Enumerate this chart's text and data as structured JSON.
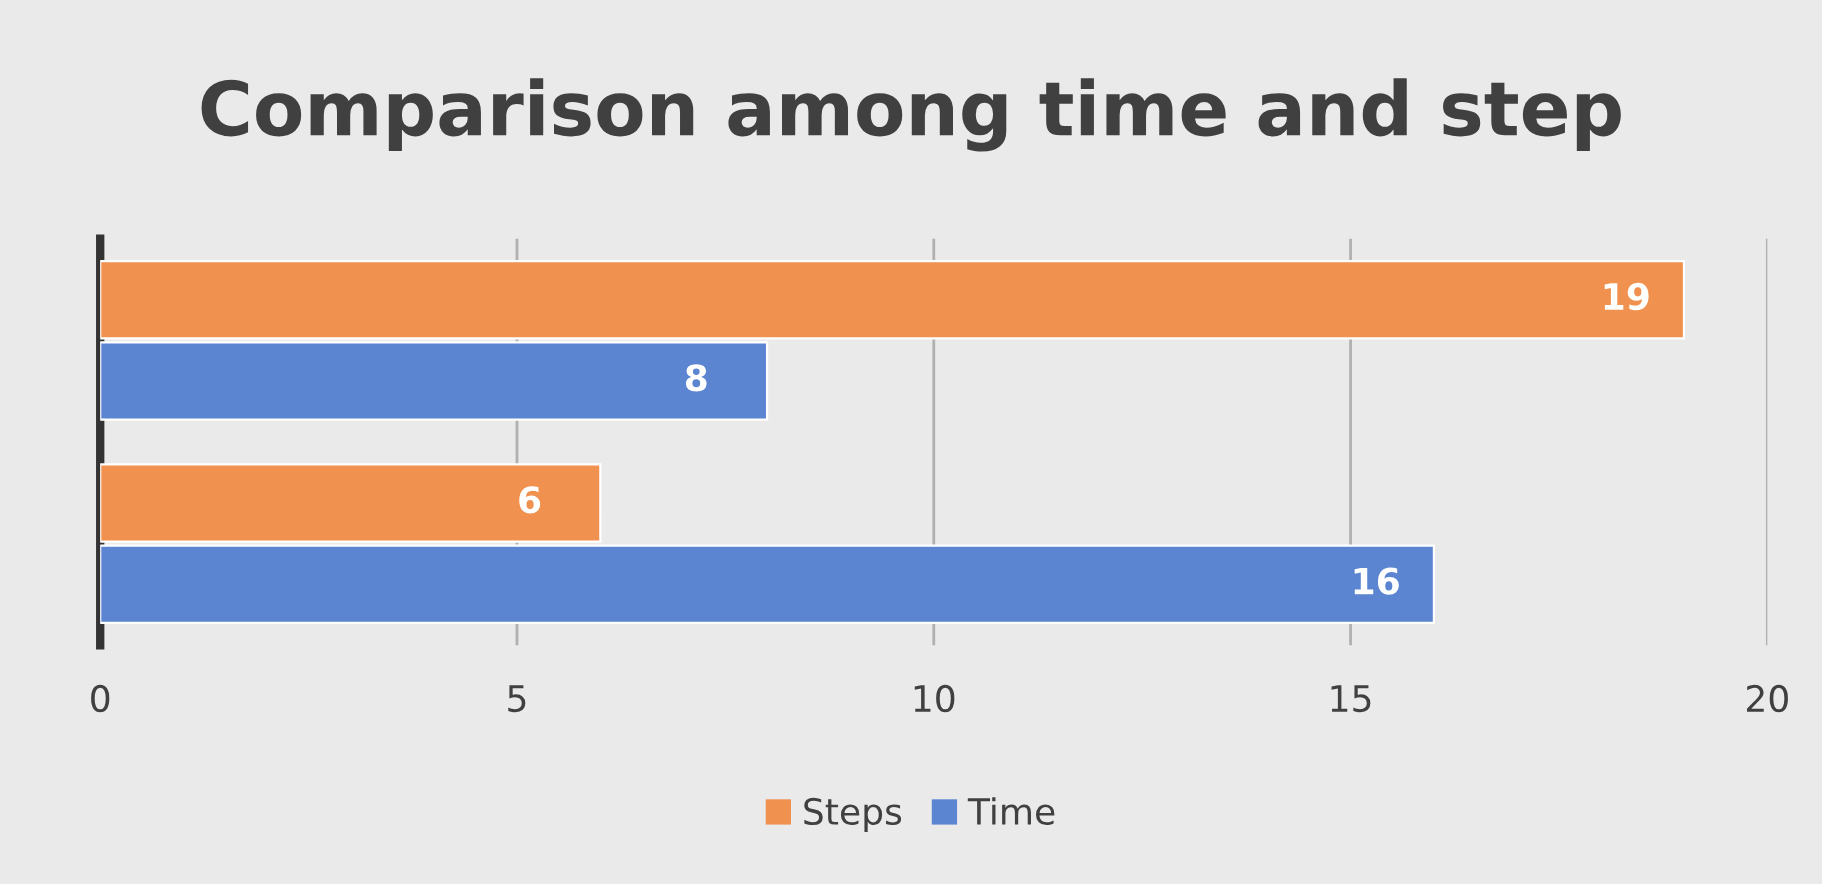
{
  "chart_data": {
    "type": "bar",
    "orientation": "horizontal",
    "title": "Comparison among time and step",
    "categories": [
      null,
      null
    ],
    "series": [
      {
        "name": "Steps",
        "color": "#f0914f",
        "values": [
          19,
          6
        ]
      },
      {
        "name": "Time",
        "color": "#5b85d1",
        "values": [
          8,
          16
        ]
      }
    ],
    "xlim": [
      0,
      20
    ],
    "xticks": [
      0,
      5,
      10,
      15,
      20
    ],
    "grid": "x",
    "legend": "bottom",
    "data_labels": true
  }
}
